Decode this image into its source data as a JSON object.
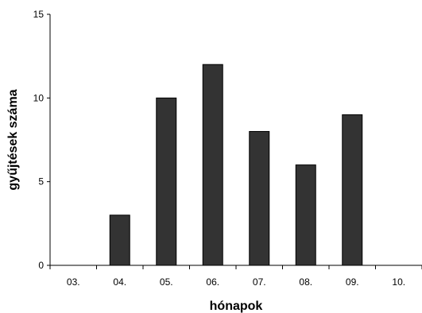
{
  "chart_data": {
    "type": "bar",
    "categories": [
      "03.",
      "04.",
      "05.",
      "06.",
      "07.",
      "08.",
      "09.",
      "10."
    ],
    "values": [
      0,
      3,
      10,
      12,
      8,
      6,
      9,
      0
    ],
    "xlabel": "hónapok",
    "ylabel": "gyűjtések száma",
    "ylim": [
      0,
      15
    ],
    "yticks": [
      0,
      5,
      10,
      15
    ],
    "grid": false,
    "bar_color": "#333333"
  }
}
